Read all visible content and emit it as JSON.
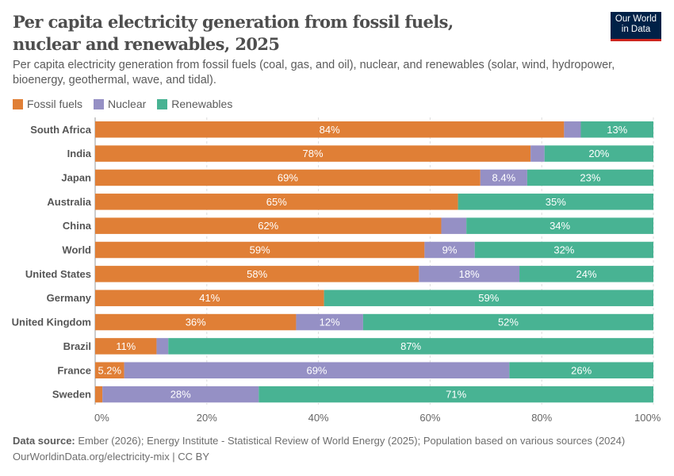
{
  "header": {
    "title": "Per capita electricity generation from fossil fuels, nuclear and renewables, 2025",
    "subtitle": "Per capita electricity generation from fossil fuels (coal, gas, and oil), nuclear, and renewables (solar, wind, hydropower, bioenergy, geothermal, wave, and tidal).",
    "logo_line1": "Our World",
    "logo_line2": "in Data"
  },
  "footer": {
    "source_label": "Data source:",
    "source_text": "Ember (2026); Energy Institute - Statistical Review of World Energy (2025); Population based on various sources (2024)",
    "url": "OurWorldinData.org/electricity-mix | CC BY"
  },
  "chart_data": {
    "type": "bar",
    "orientation": "horizontal",
    "stacked": true,
    "unit": "%",
    "xlim": [
      0,
      100
    ],
    "x_ticks": [
      "0%",
      "20%",
      "40%",
      "60%",
      "80%",
      "100%"
    ],
    "grid": true,
    "legend_placement": "top-left",
    "categories": [
      "South Africa",
      "India",
      "Japan",
      "Australia",
      "China",
      "World",
      "United States",
      "Germany",
      "United Kingdom",
      "Brazil",
      "France",
      "Sweden"
    ],
    "series": [
      {
        "name": "Fossil fuels",
        "color": "#e07f36",
        "values": [
          84,
          78,
          69,
          65,
          62,
          59,
          58,
          41,
          36,
          11,
          5.2,
          1.3
        ],
        "labels": [
          "84%",
          "78%",
          "69%",
          "65%",
          "62%",
          "59%",
          "58%",
          "41%",
          "36%",
          "11%",
          "5.2%",
          null
        ]
      },
      {
        "name": "Nuclear",
        "color": "#9590c5",
        "values": [
          3,
          2.5,
          8.4,
          0,
          4.5,
          9,
          18,
          0,
          12,
          2.1,
          69,
          28
        ],
        "labels": [
          null,
          null,
          "8.4%",
          null,
          null,
          "9%",
          "18%",
          null,
          "12%",
          null,
          "69%",
          "28%"
        ]
      },
      {
        "name": "Renewables",
        "color": "#48b393",
        "values": [
          13,
          20,
          23,
          35,
          34,
          32,
          24,
          59,
          52,
          87,
          26,
          71
        ],
        "labels": [
          "13%",
          "20%",
          "23%",
          "35%",
          "34%",
          "32%",
          "24%",
          "59%",
          "52%",
          "87%",
          "26%",
          "71%"
        ]
      }
    ]
  }
}
